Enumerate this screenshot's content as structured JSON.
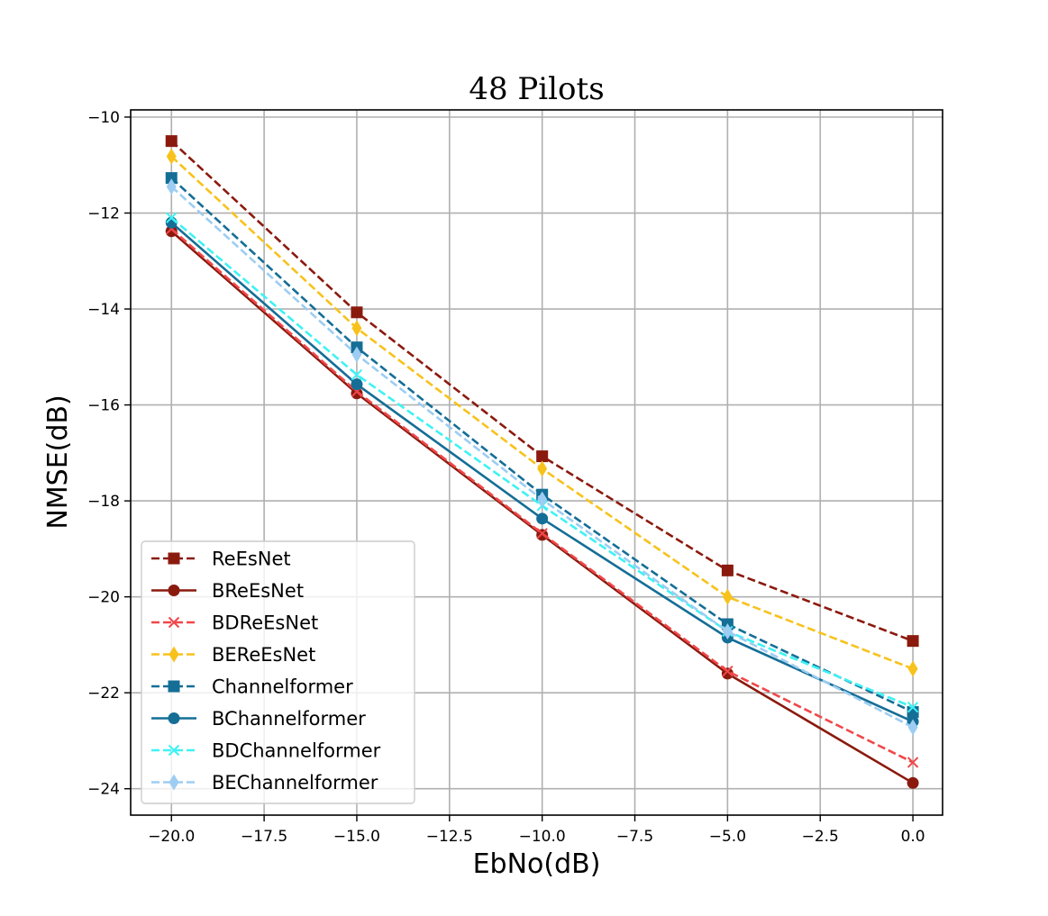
{
  "chart_data": {
    "type": "line",
    "title": "48 Pilots",
    "xlabel": "EbNo(dB)",
    "ylabel": "NMSE(dB)",
    "xlim": [
      -21.1,
      0.8
    ],
    "ylim": [
      -24.55,
      -9.85
    ],
    "xticks": [
      -20.0,
      -17.5,
      -15.0,
      -12.5,
      -10.0,
      -7.5,
      -5.0,
      -2.5,
      0.0
    ],
    "xtick_labels": [
      "−20.0",
      "−17.5",
      "−15.0",
      "−12.5",
      "−10.0",
      "−7.5",
      "−5.0",
      "−2.5",
      "0.0"
    ],
    "yticks": [
      -10,
      -12,
      -14,
      -16,
      -18,
      -20,
      -22,
      -24
    ],
    "ytick_labels": [
      "−10",
      "−12",
      "−14",
      "−16",
      "−18",
      "−20",
      "−22",
      "−24"
    ],
    "grid": true,
    "legend_position": "lower-left",
    "x": [
      -20,
      -15,
      -10,
      -5,
      0
    ],
    "series": [
      {
        "name": "ReEsNet",
        "values": [
          -10.5,
          -14.07,
          -17.07,
          -19.45,
          -20.92
        ],
        "color": "#8b1a0e",
        "dash": "dashed",
        "marker": "square"
      },
      {
        "name": "BReEsNet",
        "values": [
          -12.38,
          -15.76,
          -18.71,
          -21.6,
          -23.88
        ],
        "color": "#8b1a0e",
        "dash": "solid",
        "marker": "circle"
      },
      {
        "name": "BDReEsNet",
        "values": [
          -12.33,
          -15.72,
          -18.68,
          -21.55,
          -23.45
        ],
        "color": "#f0474a",
        "dash": "dashed",
        "marker": "x"
      },
      {
        "name": "BEReEsNet",
        "values": [
          -10.82,
          -14.4,
          -17.33,
          -20.0,
          -21.5
        ],
        "color": "#f8c21c",
        "dash": "dashed",
        "marker": "thin_diamond"
      },
      {
        "name": "Channelformer",
        "values": [
          -11.27,
          -14.8,
          -17.87,
          -20.57,
          -22.4
        ],
        "color": "#146e96",
        "dash": "dashed",
        "marker": "square"
      },
      {
        "name": "BChannelformer",
        "values": [
          -12.2,
          -15.57,
          -18.37,
          -20.85,
          -22.6
        ],
        "color": "#146e96",
        "dash": "solid",
        "marker": "circle"
      },
      {
        "name": "BDChannelformer",
        "values": [
          -12.1,
          -15.37,
          -18.1,
          -20.72,
          -22.3
        ],
        "color": "#3ef2f4",
        "dash": "dashed",
        "marker": "x"
      },
      {
        "name": "BEChannelformer",
        "values": [
          -11.45,
          -14.95,
          -17.97,
          -20.72,
          -22.72
        ],
        "color": "#9dcdf2",
        "dash": "dashed",
        "marker": "thin_diamond"
      }
    ]
  }
}
